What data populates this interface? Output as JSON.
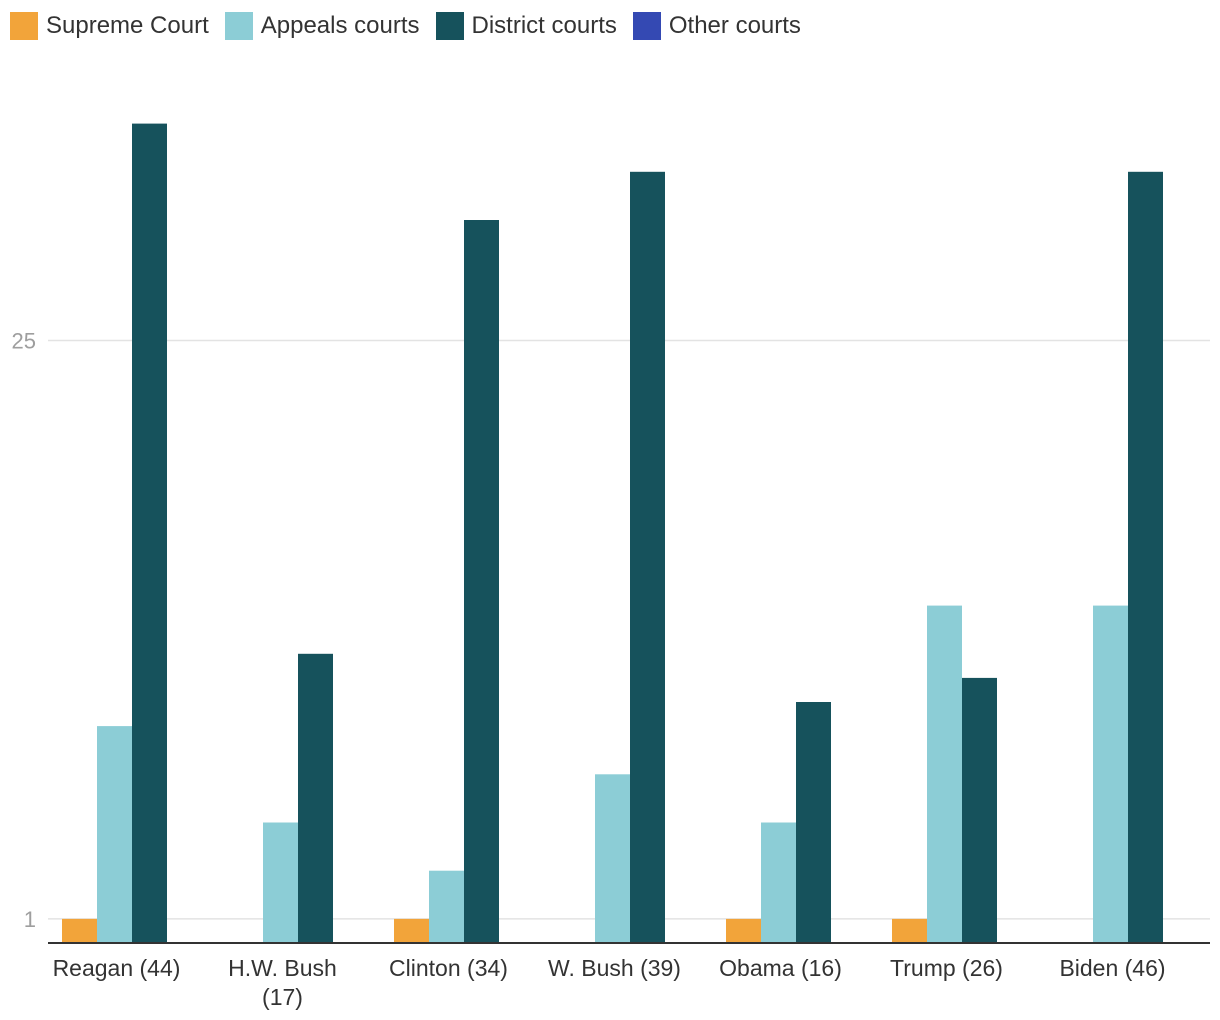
{
  "chart_data": {
    "type": "bar",
    "categories": [
      [
        "Reagan (44)"
      ],
      [
        "H.W. Bush",
        "(17)"
      ],
      [
        "Clinton (34)"
      ],
      [
        "W. Bush (39)"
      ],
      [
        "Obama (16)"
      ],
      [
        "Trump (26)"
      ],
      [
        "Biden (46)"
      ]
    ],
    "series": [
      {
        "name": "Supreme Court",
        "color": "#f2a43a",
        "values": [
          1,
          0,
          1,
          0,
          1,
          1,
          0
        ]
      },
      {
        "name": "Appeals courts",
        "color": "#8ccdd6",
        "values": [
          9,
          5,
          3,
          7,
          5,
          14,
          14
        ]
      },
      {
        "name": "District courts",
        "color": "#16525c",
        "values": [
          34,
          12,
          30,
          32,
          10,
          11,
          32
        ]
      },
      {
        "name": "Other courts",
        "color": "#3449b3",
        "values": [
          0,
          0,
          0,
          0,
          0,
          0,
          0
        ]
      }
    ],
    "y_ticks": [
      1,
      25
    ],
    "ylim": [
      0,
      37
    ],
    "grid": true,
    "legend": "top-left"
  }
}
